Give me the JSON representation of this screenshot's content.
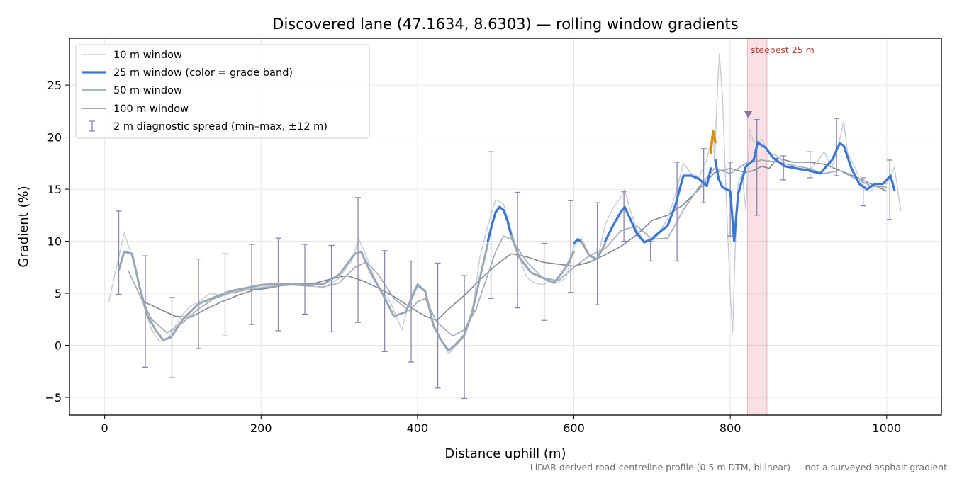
{
  "chart_data": {
    "type": "line",
    "title": "Discovered lane (47.1634, 8.6303) — rolling window gradients",
    "xlabel": "Distance uphill (m)",
    "ylabel": "Gradient (%)",
    "xlim": [
      -45,
      1070
    ],
    "ylim": [
      -6.7,
      29.5
    ],
    "xticks": [
      0,
      200,
      400,
      600,
      800,
      1000
    ],
    "yticks": [
      -5,
      0,
      5,
      10,
      15,
      20,
      25
    ],
    "grid": true,
    "legend_position": "top-left",
    "footnote": "LiDAR-derived road-centreline profile (0.5 m DTM, bilinear) — not a surveyed asphalt gradient",
    "series": [
      {
        "name": "10 m window",
        "color": "#c4cbd3",
        "x": [
          5,
          12,
          18,
          25,
          32,
          40,
          50,
          60,
          70,
          80,
          90,
          100,
          110,
          120,
          135,
          150,
          165,
          180,
          200,
          220,
          240,
          260,
          280,
          300,
          315,
          325,
          335,
          350,
          365,
          380,
          392,
          400,
          410,
          420,
          430,
          440,
          450,
          460,
          470,
          480,
          490,
          500,
          510,
          520,
          530,
          540,
          550,
          560,
          570,
          580,
          590,
          600,
          610,
          620,
          630,
          640,
          650,
          660,
          665,
          670,
          680,
          690,
          700,
          710,
          720,
          730,
          740,
          750,
          760,
          770,
          775,
          778,
          780,
          783,
          786,
          790,
          795,
          800,
          803,
          806,
          810,
          815,
          820,
          825,
          830,
          840,
          850,
          860,
          870,
          880,
          890,
          900,
          910,
          920,
          930,
          940,
          945,
          950,
          960,
          970,
          980,
          990,
          1000,
          1010,
          1018
        ],
        "values": [
          4.1,
          6.5,
          8.5,
          10.8,
          9.2,
          7.2,
          3.8,
          1.5,
          0.4,
          0.6,
          1.8,
          3.0,
          3.8,
          4.2,
          5.0,
          4.8,
          5.2,
          5.4,
          5.6,
          5.8,
          6.0,
          5.8,
          5.5,
          6.5,
          8.0,
          10.2,
          8.5,
          5.5,
          4.2,
          1.5,
          4.8,
          6.0,
          5.2,
          1.8,
          0.5,
          -0.8,
          0.0,
          0.8,
          3.2,
          8.5,
          11.5,
          14.0,
          13.6,
          11.0,
          8.5,
          6.5,
          6.0,
          5.8,
          6.2,
          6.0,
          6.5,
          9.5,
          10.3,
          8.6,
          8.2,
          11.6,
          13.2,
          14.2,
          15.0,
          13.5,
          11.2,
          10.0,
          10.4,
          11.0,
          12.2,
          14.5,
          17.5,
          16.5,
          16.2,
          17.8,
          19.5,
          20.5,
          17.5,
          23.5,
          28.0,
          24.0,
          14.0,
          5.0,
          1.2,
          8.5,
          15.5,
          16.5,
          13.0,
          20.8,
          19.5,
          19.8,
          18.5,
          18.2,
          17.5,
          17.0,
          16.8,
          16.8,
          17.5,
          18.6,
          17.0,
          19.8,
          21.5,
          18.5,
          17.0,
          15.0,
          14.8,
          15.6,
          15.5,
          17.1,
          12.9
        ]
      },
      {
        "name": "25 m window (color = grade band)",
        "color": "#3a77d4",
        "segments": [
          {
            "color": "#9aa6b4",
            "x": [
              18,
              25,
              35,
              45,
              55,
              65,
              75,
              85,
              100,
              120,
              140,
              160,
              180,
              200,
              220,
              240,
              260,
              280,
              300,
              320,
              328,
              340,
              355,
              370,
              385,
              400,
              410,
              420,
              430,
              440,
              450,
              460,
              470,
              480,
              490
            ],
            "values": [
              7.2,
              9.0,
              8.8,
              5.5,
              2.8,
              1.5,
              0.5,
              0.8,
              2.5,
              4.0,
              4.6,
              5.2,
              5.5,
              5.8,
              5.9,
              5.9,
              5.8,
              5.9,
              6.8,
              8.8,
              9.0,
              7.0,
              5.0,
              2.8,
              3.2,
              5.8,
              5.2,
              2.0,
              0.5,
              -0.5,
              0.2,
              1.0,
              3.2,
              6.5,
              9.8
            ]
          },
          {
            "color": "#3a77d4",
            "x": [
              490,
              495,
              500,
              505,
              510,
              515,
              520
            ],
            "values": [
              10.0,
              11.5,
              12.8,
              13.3,
              13.0,
              12.0,
              10.5
            ]
          },
          {
            "color": "#9aa6b4",
            "x": [
              520,
              530,
              545,
              560,
              575,
              590,
              600
            ],
            "values": [
              10.5,
              8.5,
              7.0,
              6.5,
              6.0,
              7.5,
              9.0
            ]
          },
          {
            "color": "#3a77d4",
            "x": [
              600,
              605,
              610
            ],
            "values": [
              9.8,
              10.2,
              9.9
            ]
          },
          {
            "color": "#9aa6b4",
            "x": [
              610,
              620,
              630,
              640
            ],
            "values": [
              9.9,
              8.6,
              8.3,
              9.8
            ]
          },
          {
            "color": "#3a77d4",
            "x": [
              640,
              650,
              660,
              665,
              670,
              680,
              690,
              700,
              710,
              720,
              730,
              740,
              750,
              760,
              770,
              775
            ],
            "values": [
              10.0,
              11.5,
              12.8,
              13.3,
              12.5,
              10.8,
              9.9,
              10.2,
              10.9,
              11.5,
              13.5,
              16.3,
              16.3,
              16.0,
              15.3,
              17.0
            ]
          },
          {
            "color": "#e08a00",
            "x": [
              775,
              778,
              781
            ],
            "values": [
              18.5,
              20.6,
              19.5
            ]
          },
          {
            "color": "#3a77d4",
            "x": [
              781,
              785,
              790,
              800,
              805,
              810,
              820,
              830,
              835,
              845,
              855,
              870,
              885,
              900,
              915,
              930,
              940,
              945,
              955,
              965,
              975,
              985,
              995,
              1005,
              1010
            ],
            "values": [
              17.8,
              16.0,
              15.2,
              14.8,
              10.0,
              14.5,
              17.2,
              17.8,
              19.5,
              19.0,
              18.0,
              17.2,
              17.0,
              16.8,
              16.5,
              17.8,
              19.4,
              19.2,
              17.0,
              15.5,
              15.0,
              15.5,
              15.5,
              16.3,
              14.9
            ]
          }
        ]
      },
      {
        "name": "50 m window",
        "color": "#a2acb8",
        "x": [
          30,
          45,
          60,
          80,
          100,
          120,
          140,
          160,
          180,
          200,
          220,
          240,
          260,
          280,
          300,
          320,
          335,
          350,
          370,
          390,
          400,
          410,
          425,
          445,
          460,
          475,
          490,
          500,
          510,
          520,
          540,
          560,
          580,
          600,
          620,
          640,
          660,
          680,
          700,
          720,
          740,
          760,
          780,
          800,
          820,
          840,
          860,
          880,
          900,
          920,
          940,
          960,
          980,
          1000
        ],
        "values": [
          7.2,
          4.8,
          2.5,
          1.2,
          2.2,
          3.5,
          4.5,
          5.0,
          5.3,
          5.5,
          5.7,
          5.8,
          5.7,
          5.6,
          6.0,
          7.5,
          8.0,
          6.8,
          4.5,
          3.3,
          4.2,
          4.5,
          2.2,
          0.9,
          1.5,
          3.5,
          6.8,
          9.0,
          10.5,
          10.2,
          8.0,
          6.5,
          6.2,
          7.5,
          8.6,
          9.3,
          11.0,
          11.5,
          10.2,
          10.3,
          13.0,
          15.2,
          17.0,
          16.5,
          17.5,
          17.8,
          17.6,
          17.3,
          17.0,
          16.5,
          16.8,
          16.0,
          15.3,
          15.2
        ]
      },
      {
        "name": "100 m window",
        "color": "#7f8893",
        "x": [
          50,
          70,
          90,
          110,
          130,
          150,
          170,
          190,
          210,
          230,
          250,
          270,
          290,
          310,
          330,
          350,
          370,
          390,
          410,
          425,
          440,
          460,
          480,
          500,
          520,
          540,
          560,
          580,
          600,
          620,
          640,
          660,
          680,
          700,
          720,
          740,
          760,
          780,
          800,
          810,
          820,
          830,
          840,
          850,
          860,
          880,
          900,
          920,
          940,
          960,
          980,
          1000
        ],
        "values": [
          4.2,
          3.5,
          2.8,
          2.7,
          3.5,
          4.2,
          4.8,
          5.3,
          5.5,
          5.8,
          5.9,
          6.0,
          6.4,
          6.7,
          6.2,
          5.5,
          4.7,
          3.7,
          2.8,
          2.4,
          3.5,
          4.8,
          6.3,
          7.7,
          8.8,
          8.5,
          8.0,
          7.8,
          7.6,
          8.0,
          8.7,
          9.5,
          10.6,
          12.0,
          12.5,
          13.5,
          15.0,
          16.6,
          17.0,
          16.8,
          16.6,
          16.8,
          17.2,
          17.0,
          18.0,
          17.6,
          17.6,
          17.4,
          16.8,
          16.2,
          15.5,
          14.8
        ]
      },
      {
        "name": "2 m diagnostic spread (min–max, ±12 m)",
        "color": "#8c86ae",
        "errorbars": [
          {
            "x": 18,
            "low": 4.9,
            "high": 12.9
          },
          {
            "x": 52,
            "low": -2.1,
            "high": 8.6
          },
          {
            "x": 86,
            "low": -3.1,
            "high": 4.6
          },
          {
            "x": 120,
            "low": -0.3,
            "high": 8.3
          },
          {
            "x": 154,
            "low": 0.9,
            "high": 8.8
          },
          {
            "x": 188,
            "low": 2.0,
            "high": 9.7
          },
          {
            "x": 222,
            "low": 1.4,
            "high": 10.3
          },
          {
            "x": 256,
            "low": 3.0,
            "high": 9.7
          },
          {
            "x": 290,
            "low": 1.3,
            "high": 9.6
          },
          {
            "x": 324,
            "low": 2.2,
            "high": 14.2
          },
          {
            "x": 358,
            "low": -0.6,
            "high": 9.1
          },
          {
            "x": 392,
            "low": -1.6,
            "high": 8.1
          },
          {
            "x": 426,
            "low": -4.1,
            "high": 7.9
          },
          {
            "x": 460,
            "low": -5.1,
            "high": 6.7
          },
          {
            "x": 494,
            "low": 4.5,
            "high": 18.6
          },
          {
            "x": 528,
            "low": 3.6,
            "high": 14.7
          },
          {
            "x": 562,
            "low": 2.4,
            "high": 9.8
          },
          {
            "x": 596,
            "low": 5.1,
            "high": 13.9
          },
          {
            "x": 630,
            "low": 3.9,
            "high": 13.7
          },
          {
            "x": 664,
            "low": 10.0,
            "high": 14.8
          },
          {
            "x": 698,
            "low": 8.1,
            "high": 10.0
          },
          {
            "x": 732,
            "low": 8.1,
            "high": 17.6
          },
          {
            "x": 766,
            "low": 13.7,
            "high": 18.9
          },
          {
            "x": 800,
            "low": 10.5,
            "high": 17.6
          },
          {
            "x": 834,
            "low": 12.5,
            "high": 21.7
          },
          {
            "x": 868,
            "low": 15.9,
            "high": 18.2
          },
          {
            "x": 902,
            "low": 16.1,
            "high": 18.6
          },
          {
            "x": 936,
            "low": 16.3,
            "high": 21.8
          },
          {
            "x": 970,
            "low": 13.4,
            "high": 16.1
          },
          {
            "x": 1004,
            "low": 12.1,
            "high": 17.8
          }
        ]
      }
    ],
    "annotations": {
      "steepest_band": {
        "x_start": 822,
        "x_end": 847,
        "label": "steepest 25 m",
        "color": "#d9485f"
      },
      "peak_marker": {
        "x": 823,
        "y": 22.2,
        "color": "#8878a8"
      }
    }
  }
}
